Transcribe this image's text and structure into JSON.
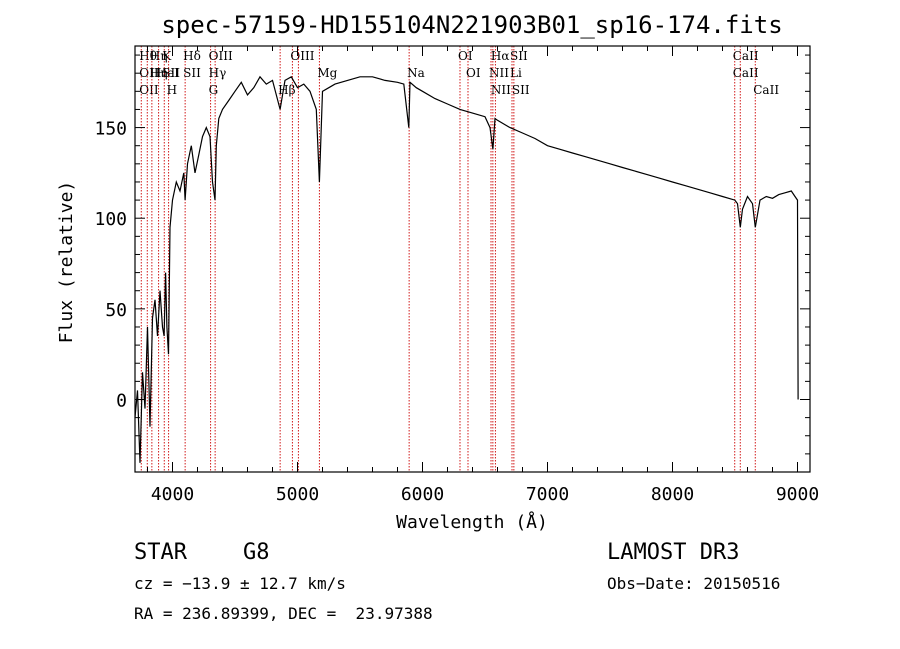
{
  "chart_data": {
    "type": "line",
    "title": "spec-57159-HD155104N221903B01_sp16-174.fits",
    "xlabel": "Wavelength (Å)",
    "ylabel": "Flux (relative)",
    "xlim": [
      3700,
      9100
    ],
    "ylim": [
      -40,
      195
    ],
    "xticks": [
      4000,
      5000,
      6000,
      7000,
      8000,
      9000
    ],
    "yticks": [
      0,
      50,
      100,
      150
    ],
    "series": [
      {
        "name": "spectrum",
        "x": [
          3700,
          3720,
          3740,
          3760,
          3780,
          3800,
          3820,
          3840,
          3860,
          3880,
          3900,
          3920,
          3933,
          3945,
          3955,
          3968,
          3980,
          4000,
          4030,
          4060,
          4090,
          4101,
          4120,
          4150,
          4180,
          4210,
          4240,
          4270,
          4300,
          4320,
          4340,
          4350,
          4370,
          4400,
          4450,
          4500,
          4550,
          4600,
          4650,
          4700,
          4750,
          4800,
          4861,
          4900,
          4950,
          5000,
          5050,
          5100,
          5150,
          5175,
          5200,
          5250,
          5300,
          5400,
          5500,
          5600,
          5700,
          5800,
          5850,
          5890,
          5900,
          5950,
          6000,
          6100,
          6200,
          6300,
          6400,
          6500,
          6540,
          6563,
          6580,
          6600,
          6700,
          6800,
          6900,
          7000,
          7100,
          7200,
          7300,
          7400,
          7500,
          7600,
          7700,
          7800,
          7900,
          8000,
          8100,
          8200,
          8300,
          8400,
          8498,
          8520,
          8542,
          8560,
          8600,
          8640,
          8662,
          8700,
          8750,
          8800,
          8850,
          8900,
          8950,
          8980,
          9000,
          9005
        ],
        "y": [
          -10,
          5,
          -35,
          15,
          -5,
          40,
          -15,
          45,
          55,
          35,
          60,
          40,
          35,
          70,
          40,
          25,
          95,
          110,
          120,
          115,
          125,
          110,
          130,
          140,
          125,
          135,
          145,
          150,
          145,
          120,
          110,
          140,
          155,
          160,
          165,
          170,
          175,
          168,
          172,
          178,
          174,
          176,
          160,
          176,
          178,
          172,
          174,
          170,
          160,
          120,
          170,
          172,
          174,
          176,
          178,
          178,
          176,
          175,
          174,
          150,
          175,
          172,
          170,
          166,
          163,
          160,
          158,
          156,
          150,
          138,
          155,
          154,
          150,
          147,
          144,
          140,
          138,
          136,
          134,
          132,
          130,
          128,
          126,
          124,
          122,
          120,
          118,
          116,
          114,
          112,
          110,
          108,
          95,
          105,
          112,
          108,
          95,
          110,
          112,
          111,
          113,
          114,
          115,
          112,
          110,
          0
        ]
      }
    ],
    "line_markers": [
      {
        "x": 3750,
        "labels": [
          "Hθ",
          "OII",
          "OII"
        ]
      },
      {
        "x": 3798,
        "labels": [
          "",
          "",
          ""
        ]
      },
      {
        "x": 3835,
        "labels": [
          "Hη",
          "Hη",
          ""
        ]
      },
      {
        "x": 3889,
        "labels": [
          "",
          "HeI",
          ""
        ]
      },
      {
        "x": 3934,
        "labels": [
          "K",
          "SII",
          ""
        ]
      },
      {
        "x": 3969,
        "labels": [
          "",
          "",
          "H"
        ]
      },
      {
        "x": 4101,
        "labels": [
          "Hδ",
          "SII",
          ""
        ]
      },
      {
        "x": 4305,
        "labels": [
          "OIII",
          "Hγ",
          "G"
        ]
      },
      {
        "x": 4341,
        "labels": [
          "",
          "",
          ""
        ]
      },
      {
        "x": 4861,
        "labels": [
          "",
          "",
          "Hβ"
        ]
      },
      {
        "x": 4959,
        "labels": [
          "OIII",
          "",
          ""
        ]
      },
      {
        "x": 5007,
        "labels": [
          "",
          "",
          ""
        ]
      },
      {
        "x": 5175,
        "labels": [
          "",
          "Mg",
          ""
        ]
      },
      {
        "x": 5893,
        "labels": [
          "",
          "Na",
          ""
        ]
      },
      {
        "x": 6300,
        "labels": [
          "OI",
          "",
          ""
        ]
      },
      {
        "x": 6364,
        "labels": [
          "",
          "OI",
          ""
        ]
      },
      {
        "x": 6548,
        "labels": [
          "",
          "NII",
          ""
        ]
      },
      {
        "x": 6563,
        "labels": [
          "Hα",
          "",
          "NII"
        ]
      },
      {
        "x": 6583,
        "labels": [
          "",
          "",
          ""
        ]
      },
      {
        "x": 6716,
        "labels": [
          "SII",
          "Li",
          ""
        ]
      },
      {
        "x": 6731,
        "labels": [
          "",
          "",
          "SII"
        ]
      },
      {
        "x": 8498,
        "labels": [
          "CaII",
          "CaII",
          ""
        ]
      },
      {
        "x": 8542,
        "labels": [
          "",
          "",
          ""
        ]
      },
      {
        "x": 8662,
        "labels": [
          "",
          "",
          "CaII"
        ]
      }
    ]
  },
  "info": {
    "object_type": "STAR",
    "subclass": "G8",
    "survey": "LAMOST DR3",
    "cz": "cz = −13.9 ± 12.7 km/s",
    "obs_date": "Obs−Date: 20150516",
    "coords": "RA = 236.89399, DEC =  23.97388"
  },
  "colors": {
    "spectrum": "#000000",
    "marker_line": "#cc0000",
    "axes": "#000000"
  }
}
